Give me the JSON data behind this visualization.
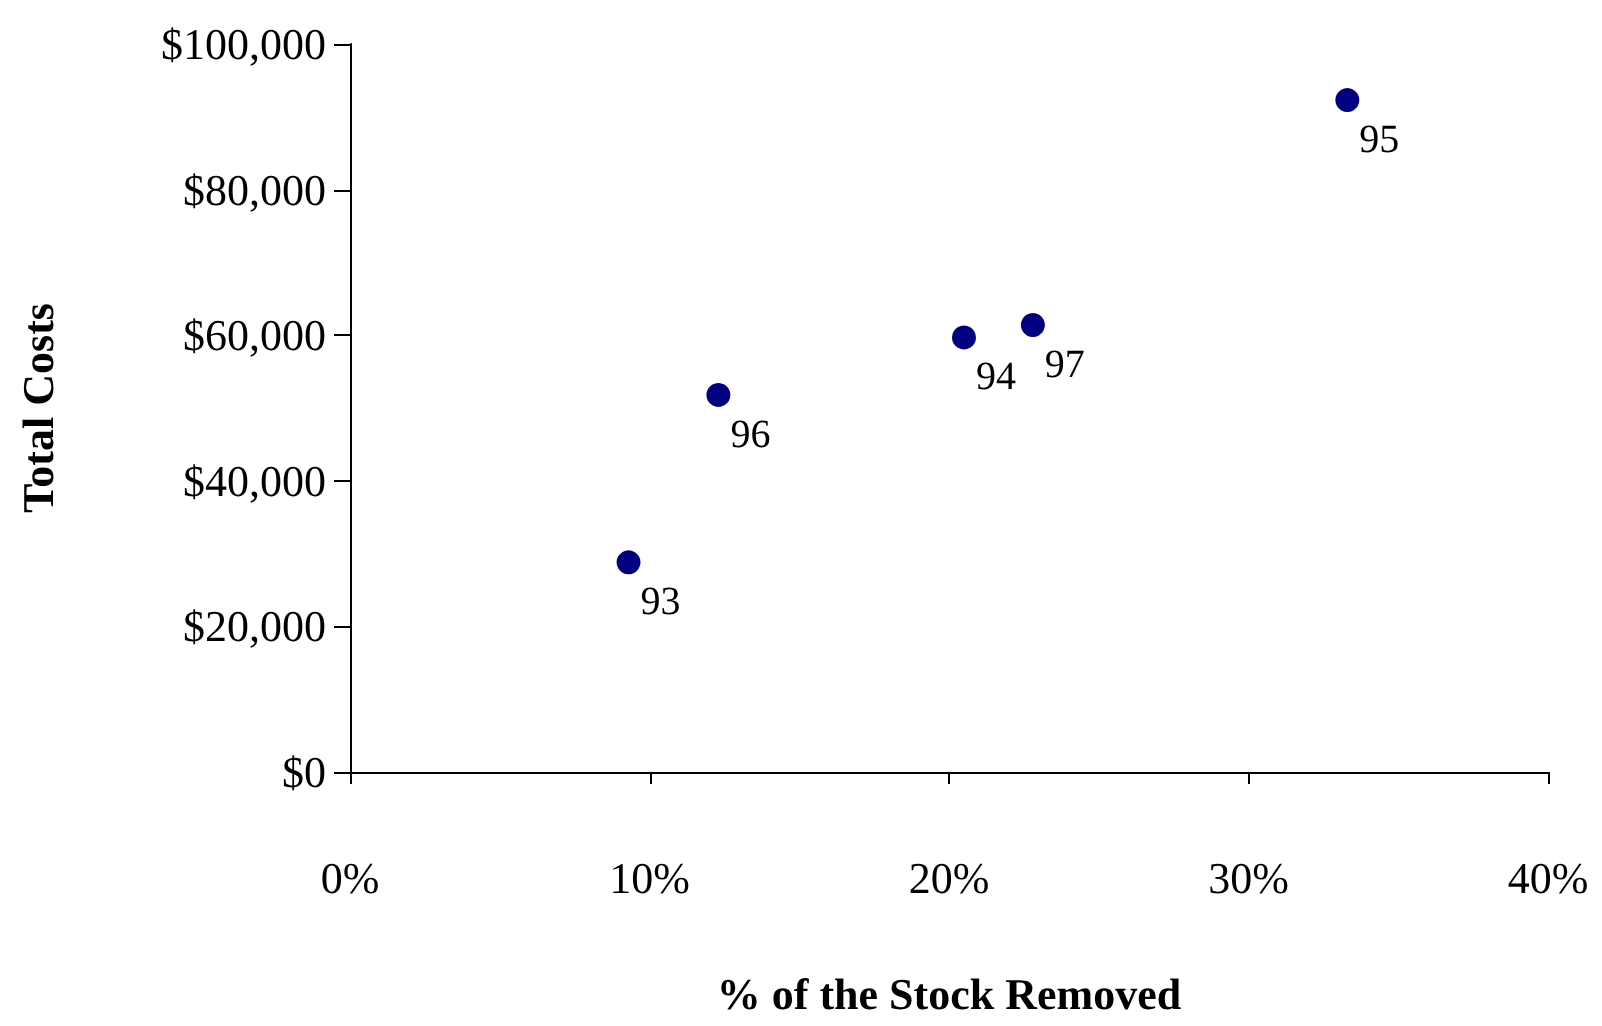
{
  "chart_data": {
    "type": "scatter",
    "xlabel": "% of the Stock Removed",
    "ylabel": "Total Costs",
    "x": [
      9.3,
      12.3,
      20.5,
      22.8,
      33.3
    ],
    "series": [
      {
        "color": "#000080",
        "values": [
          28800,
          51800,
          59700,
          61400,
          92300
        ]
      }
    ],
    "xlim": [
      0,
      40
    ],
    "xticks": [
      {
        "value": 0,
        "label": "0%"
      },
      {
        "value": 10,
        "label": "10%"
      },
      {
        "value": 20,
        "label": "20%"
      },
      {
        "value": 30,
        "label": "30%"
      },
      {
        "value": 40,
        "label": "40%"
      }
    ],
    "ylim": [
      0,
      100000
    ],
    "yticks": [
      {
        "value": 0,
        "label": "$0"
      },
      {
        "value": 20000,
        "label": "$20,000"
      },
      {
        "value": 40000,
        "label": "$40,000"
      },
      {
        "value": 60000,
        "label": "$60,000"
      },
      {
        "value": 80000,
        "label": "$80,000"
      },
      {
        "value": 100000,
        "label": "$100,000"
      }
    ],
    "annotations": [
      {
        "text": "93",
        "x": 9.3,
        "y": 28800
      },
      {
        "text": "96",
        "x": 12.3,
        "y": 51800
      },
      {
        "text": "94",
        "x": 20.5,
        "y": 59700
      },
      {
        "text": "97",
        "x": 22.8,
        "y": 61400
      },
      {
        "text": "95",
        "x": 33.3,
        "y": 92300
      }
    ],
    "marker": "circle",
    "grid": false
  }
}
